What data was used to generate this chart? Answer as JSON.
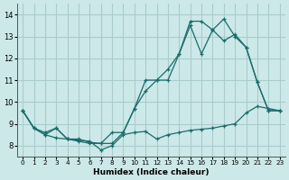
{
  "xlabel": "Humidex (Indice chaleur)",
  "bg_color": "#cce8e8",
  "grid_color": "#aacccc",
  "line_color": "#1a6b6b",
  "xlim": [
    -0.5,
    23.5
  ],
  "ylim": [
    7.5,
    14.5
  ],
  "yticks": [
    8,
    9,
    10,
    11,
    12,
    13,
    14
  ],
  "xticks": [
    0,
    1,
    2,
    3,
    4,
    5,
    6,
    7,
    8,
    9,
    10,
    11,
    12,
    13,
    14,
    15,
    16,
    17,
    18,
    19,
    20,
    21,
    22,
    23
  ],
  "line1_x": [
    0,
    1,
    2,
    3,
    4,
    5,
    6,
    7,
    8,
    9,
    10,
    11,
    12,
    13,
    14,
    15,
    16,
    17,
    18,
    19,
    20,
    21,
    22,
    23
  ],
  "line1_y": [
    9.6,
    8.8,
    8.6,
    8.8,
    8.3,
    8.3,
    8.15,
    8.1,
    8.6,
    8.6,
    9.7,
    11.0,
    11.0,
    11.0,
    12.2,
    13.7,
    13.7,
    13.3,
    13.8,
    13.0,
    12.5,
    10.9,
    9.6,
    9.6
  ],
  "line2_x": [
    0,
    1,
    2,
    3,
    4,
    5,
    6,
    7,
    8,
    9,
    10,
    11,
    12,
    13,
    14,
    15,
    16,
    17,
    18,
    19,
    20,
    21,
    22,
    23
  ],
  "line2_y": [
    9.6,
    8.8,
    8.5,
    8.8,
    8.3,
    8.2,
    8.1,
    8.1,
    8.1,
    8.6,
    9.7,
    10.5,
    11.0,
    11.5,
    12.2,
    13.5,
    12.2,
    13.3,
    12.8,
    13.1,
    12.5,
    10.9,
    9.6,
    9.6
  ],
  "line3_x": [
    0,
    1,
    2,
    3,
    4,
    5,
    6,
    7,
    8,
    9,
    10,
    11,
    12,
    13,
    14,
    15,
    16,
    17,
    18,
    19,
    20,
    21,
    22,
    23
  ],
  "line3_y": [
    9.6,
    8.8,
    8.5,
    8.35,
    8.3,
    8.25,
    8.2,
    7.8,
    8.0,
    8.5,
    8.6,
    8.65,
    8.3,
    8.5,
    8.6,
    8.7,
    8.75,
    8.8,
    8.9,
    9.0,
    9.5,
    9.8,
    9.7,
    9.6
  ]
}
